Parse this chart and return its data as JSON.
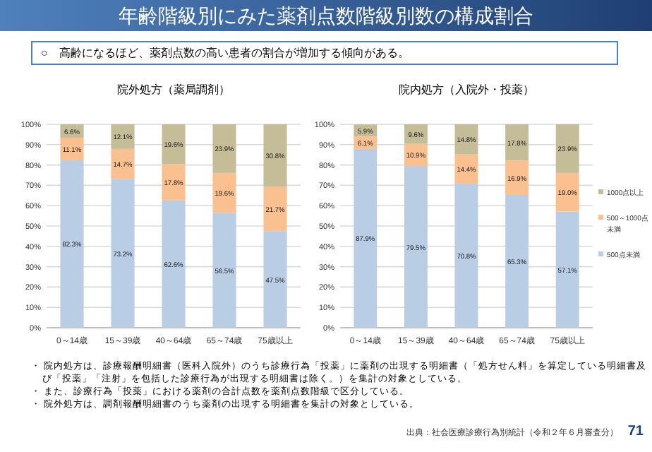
{
  "chart_data": [
    {
      "type": "other",
      "title": "年齢階級別にみた薬剤点数階級別数の構成割合",
      "subtitle": "○　高齢になるほど、薬剤点数の高い患者の割合が増加する傾向がある。",
      "annotations": [
        "・ 院内処方は、診療報酬明細書（医科入院外）のうち診療行為「投薬」に薬剤の出現する明細書（「処方せん料」を算定している明細書及び「投薬」「注射」を包括した診療行為が出現する明細書は除く。）を集計の対象としている。",
        "・ また、診療行為「投薬」における薬剤の合計点数を薬剤点数階級で区分している。",
        "・ 院外処方は、調剤報酬明細書のうち薬剤の出現する明細書を集計の対象としている。",
        "出典：社会医療診療行為別統計（令和２年６月審査分）",
        "71"
      ]
    },
    {
      "type": "bar",
      "stacked": true,
      "title": "院外処方（薬局調剤）",
      "categories": [
        "0～14歳",
        "15～39歳",
        "40～64歳",
        "65～74歳",
        "75歳以上"
      ],
      "ylim": [
        0,
        100
      ],
      "yticks": [
        {
          "value": 0,
          "label": "0%"
        },
        {
          "value": 10,
          "label": "10%"
        },
        {
          "value": 20,
          "label": "20%"
        },
        {
          "value": 30,
          "label": "30%"
        },
        {
          "value": 40,
          "label": "40%"
        },
        {
          "value": 50,
          "label": "50%"
        },
        {
          "value": 60,
          "label": "60%"
        },
        {
          "value": 70,
          "label": "70%"
        },
        {
          "value": 80,
          "label": "80%"
        },
        {
          "value": 90,
          "label": "90%"
        },
        {
          "value": 100,
          "label": "100%"
        }
      ],
      "grid": "y",
      "legend": false,
      "series": [
        {
          "color": "#b9cde5",
          "values": [
            82.3,
            73.2,
            62.6,
            56.5,
            47.5
          ],
          "value_labels": [
            "82.3%",
            "73.2%",
            "62.6%",
            "56.5%",
            "47.5%"
          ]
        },
        {
          "color": "#fac090",
          "values": [
            11.1,
            14.7,
            17.8,
            19.6,
            21.7
          ],
          "value_labels": [
            "11.1%",
            "14.7%",
            "17.8%",
            "19.6%",
            "21.7%"
          ]
        },
        {
          "color": "#c4bd97",
          "values": [
            6.6,
            12.1,
            19.6,
            23.9,
            30.8
          ],
          "value_labels": [
            "6.6%",
            "12.1%",
            "19.6%",
            "23.9%",
            "30.8%"
          ]
        }
      ]
    },
    {
      "type": "bar",
      "stacked": true,
      "title": "院内処方（入院外・投薬）",
      "categories": [
        "0～14歳",
        "15～39歳",
        "40～64歳",
        "65～74歳",
        "75歳以上"
      ],
      "ylim": [
        0,
        100
      ],
      "yticks": [
        {
          "value": 0,
          "label": "0%"
        },
        {
          "value": 10,
          "label": "10%"
        },
        {
          "value": 20,
          "label": "20%"
        },
        {
          "value": 30,
          "label": "30%"
        },
        {
          "value": 40,
          "label": "40%"
        },
        {
          "value": 50,
          "label": "50%"
        },
        {
          "value": 60,
          "label": "60%"
        },
        {
          "value": 70,
          "label": "70%"
        },
        {
          "value": 80,
          "label": "80%"
        },
        {
          "value": 90,
          "label": "90%"
        },
        {
          "value": 100,
          "label": "100%"
        }
      ],
      "grid": "y",
      "legend": "right",
      "series": [
        {
          "name": "500点未満",
          "color": "#b9cde5",
          "values": [
            87.9,
            79.5,
            70.8,
            65.3,
            57.1
          ],
          "value_labels": [
            "87.9%",
            "79.5%",
            "70.8%",
            "65.3%",
            "57.1%"
          ]
        },
        {
          "name": "500～1000点未満",
          "color": "#fac090",
          "values": [
            6.1,
            10.9,
            14.4,
            16.9,
            19.0
          ],
          "value_labels": [
            "6.1%",
            "10.9%",
            "14.4%",
            "16.9%",
            "19.0%"
          ]
        },
        {
          "name": "1000点以上",
          "color": "#c4bd97",
          "values": [
            5.9,
            9.6,
            14.8,
            17.8,
            23.9
          ],
          "value_labels": [
            "5.9%",
            "9.6%",
            "14.8%",
            "17.8%",
            "23.9%"
          ]
        }
      ]
    }
  ]
}
